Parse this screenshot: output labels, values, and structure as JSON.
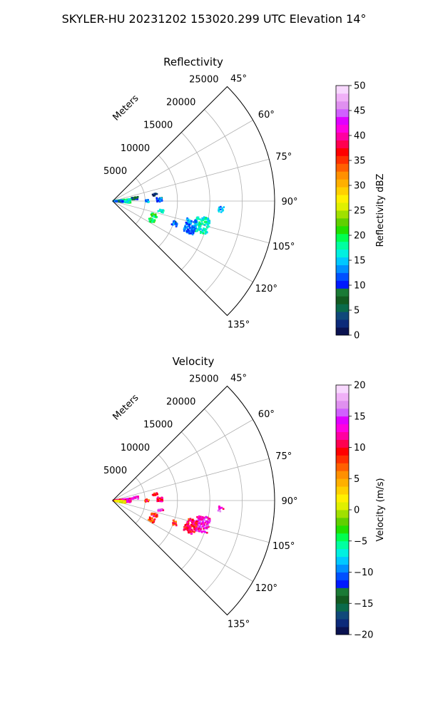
{
  "figure": {
    "suptitle": "SKYLER-HU  20231202  153020.299 UTC Elevation 14°"
  },
  "chart_data": [
    {
      "type": "polar-sector",
      "title": "Reflectivity",
      "radial_label": "Meters",
      "range_ticks": [
        "5000",
        "10000",
        "15000",
        "20000",
        "25000"
      ],
      "range_values": [
        5000,
        10000,
        15000,
        20000,
        25000
      ],
      "rmax": 25000,
      "azimuth_range": [
        45,
        135
      ],
      "azimuth_ticks": [
        45,
        60,
        75,
        90,
        105,
        120,
        135
      ],
      "azimuth_tick_labels": [
        "45°",
        "60°",
        "75°",
        "90°",
        "105°",
        "120°",
        "135°"
      ],
      "grid": true,
      "colorbar": {
        "label": "Reflectivity dBZ",
        "vmin": 0,
        "vmax": 50,
        "ticks": [
          "0",
          "5",
          "10",
          "15",
          "20",
          "25",
          "30",
          "35",
          "40",
          "45",
          "50"
        ],
        "colors": [
          "#0a1250",
          "#0c2a7a",
          "#10487a",
          "#0a6a4a",
          "#125a20",
          "#1a7a35",
          "#0018ff",
          "#0050ff",
          "#0090ff",
          "#00c8ff",
          "#00f0e0",
          "#00ffa0",
          "#00ff50",
          "#20e000",
          "#60d000",
          "#a0e000",
          "#e0f000",
          "#fff000",
          "#ffd000",
          "#ffb000",
          "#ff9000",
          "#ff6000",
          "#ff3000",
          "#ff0000",
          "#ff0050",
          "#ff00a0",
          "#ff00e0",
          "#e000ff",
          "#d060ff",
          "#e090f0",
          "#f0b0f8",
          "#f8d8ff"
        ]
      },
      "cell_groups": [
        {
          "az": [
            82,
            92
          ],
          "r": [
            100,
            1400
          ],
          "value": 15
        },
        {
          "az": [
            83,
            96
          ],
          "r": [
            1500,
            2800
          ],
          "value": 18
        },
        {
          "az": [
            88,
            95
          ],
          "r": [
            500,
            1600
          ],
          "value": 9
        },
        {
          "az": [
            80,
            86
          ],
          "r": [
            3000,
            4000
          ],
          "value": 8
        },
        {
          "az": [
            86,
            91
          ],
          "r": [
            6800,
            7700
          ],
          "value": 12
        },
        {
          "az": [
            80,
            83
          ],
          "r": [
            6200,
            7000
          ],
          "value": 3
        },
        {
          "az": [
            88,
            92
          ],
          "r": [
            5000,
            5600
          ],
          "value": 14
        },
        {
          "az": [
            100,
            103
          ],
          "r": [
            7200,
            8000
          ],
          "value": 16
        },
        {
          "az": [
            107,
            111
          ],
          "r": [
            6300,
            7300
          ],
          "value": 20
        },
        {
          "az": [
            114,
            119
          ],
          "r": [
            6200,
            7200
          ],
          "value": 21
        },
        {
          "az": [
            100,
            110
          ],
          "r": [
            13200,
            15400
          ],
          "value": 17
        },
        {
          "az": [
            103,
            113
          ],
          "r": [
            11800,
            13500
          ],
          "value": 13
        },
        {
          "az": [
            93,
            96
          ],
          "r": [
            16400,
            17200
          ],
          "value": 14
        },
        {
          "az": [
            108,
            112
          ],
          "r": [
            9800,
            10600
          ],
          "value": 12
        }
      ]
    },
    {
      "type": "polar-sector",
      "title": "Velocity",
      "radial_label": "Meters",
      "range_ticks": [
        "5000",
        "10000",
        "15000",
        "20000",
        "25000"
      ],
      "range_values": [
        5000,
        10000,
        15000,
        20000,
        25000
      ],
      "rmax": 25000,
      "azimuth_range": [
        45,
        135
      ],
      "azimuth_ticks": [
        45,
        60,
        75,
        90,
        105,
        120,
        135
      ],
      "azimuth_tick_labels": [
        "45°",
        "60°",
        "75°",
        "90°",
        "105°",
        "120°",
        "135°"
      ],
      "grid": true,
      "colorbar": {
        "label": "Velocity (m/s)",
        "vmin": -20,
        "vmax": 20,
        "ticks": [
          "−20",
          "−15",
          "−10",
          "−5",
          "0",
          "5",
          "10",
          "15",
          "20"
        ],
        "colors": [
          "#0a1250",
          "#0c2a7a",
          "#10487a",
          "#0a6a4a",
          "#125a20",
          "#1a7a35",
          "#0018ff",
          "#0050ff",
          "#0090ff",
          "#00c8ff",
          "#00f0e0",
          "#00ffa0",
          "#00ff50",
          "#20e000",
          "#60d000",
          "#a0e000",
          "#e0f000",
          "#fff000",
          "#ffd000",
          "#ffb000",
          "#ff9000",
          "#ff6000",
          "#ff3000",
          "#ff0000",
          "#ff0050",
          "#ff00a0",
          "#ff00e0",
          "#e000ff",
          "#d060ff",
          "#e090f0",
          "#f0b0f8",
          "#f8d8ff"
        ]
      },
      "cell_groups": [
        {
          "az": [
            82,
            92
          ],
          "r": [
            100,
            1400
          ],
          "value": 10
        },
        {
          "az": [
            83,
            96
          ],
          "r": [
            1500,
            2800
          ],
          "value": 12
        },
        {
          "az": [
            92,
            102
          ],
          "r": [
            300,
            2000
          ],
          "value": 2
        },
        {
          "az": [
            80,
            86
          ],
          "r": [
            3000,
            4000
          ],
          "value": 14
        },
        {
          "az": [
            86,
            91
          ],
          "r": [
            6800,
            7700
          ],
          "value": 11
        },
        {
          "az": [
            80,
            83
          ],
          "r": [
            6200,
            7000
          ],
          "value": 9
        },
        {
          "az": [
            88,
            92
          ],
          "r": [
            5000,
            5600
          ],
          "value": 9
        },
        {
          "az": [
            100,
            103
          ],
          "r": [
            7200,
            8000
          ],
          "value": 13
        },
        {
          "az": [
            107,
            111
          ],
          "r": [
            6300,
            7300
          ],
          "value": 9
        },
        {
          "az": [
            114,
            119
          ],
          "r": [
            6200,
            7200
          ],
          "value": 8
        },
        {
          "az": [
            100,
            110
          ],
          "r": [
            13200,
            15400
          ],
          "value": 13
        },
        {
          "az": [
            103,
            113
          ],
          "r": [
            11800,
            13500
          ],
          "value": 10
        },
        {
          "az": [
            93,
            96
          ],
          "r": [
            16400,
            17200
          ],
          "value": 14
        },
        {
          "az": [
            108,
            112
          ],
          "r": [
            9800,
            10600
          ],
          "value": 9
        }
      ]
    }
  ]
}
